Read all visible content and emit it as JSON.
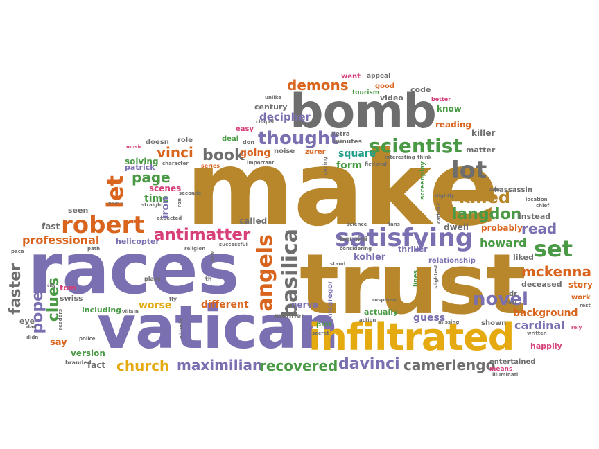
{
  "colors": {
    "purple": "#7a6fb0",
    "brown": "#b8862b",
    "gray": "#6e6e6e",
    "gold": "#e4aa10",
    "green": "#4a9a45",
    "teal": "#1f9e8a",
    "orange": "#d9641e",
    "pink": "#d63f79",
    "red": "#c23a2c"
  },
  "words": {
    "make": "make",
    "trust": "trust",
    "races": "races",
    "vatican": "vatican",
    "infiltrated": "infiltrated",
    "bomb": "bomb",
    "satisfying": "satisfying",
    "scientist": "scientist",
    "demons": "demons",
    "robert": "robert",
    "angels": "angels",
    "basilica": "basilica",
    "antimatter": "antimatter",
    "langdon": "langdon",
    "novel": "novel",
    "set": "set",
    "mckenna": "mckenna",
    "lot": "lot",
    "killed": "killed",
    "thought": "thought",
    "book": "book",
    "page": "page",
    "let": "let",
    "vinci": "vinci",
    "church": "church",
    "maximilian": "maximilian",
    "recovered": "recovered",
    "davinci": "davinci",
    "camerlengo": "camerlengo",
    "clues": "clues",
    "pope": "pope",
    "faster": "faster",
    "read": "read",
    "howard": "howard",
    "professional": "professional",
    "cardinal": "cardinal",
    "background": "background",
    "different": "different",
    "worse": "worse",
    "kohler": "kohler",
    "decipher": "decipher",
    "going": "going",
    "square": "square",
    "form": "form",
    "iron": "iron",
    "time": "time",
    "scenes": "scenes",
    "solving": "solving",
    "patrick": "patrick",
    "helicopter": "helicopter",
    "called": "called",
    "fast": "fast",
    "seen": "seen",
    "swiss": "swiss",
    "tom": "tom",
    "eye": "eye",
    "say": "say",
    "version": "version",
    "fact": "fact",
    "branded": "branded",
    "including": "including",
    "nerve": "nerve",
    "guess": "guess",
    "actually": "actually",
    "plot": "plot",
    "manner": "manner",
    "thriller": "thriller",
    "relationship": "relationship",
    "mcgregor": "mcgregor",
    "bernini": "bernini",
    "dwell": "dwell",
    "probably": "probably",
    "instead": "instead",
    "liked": "liked",
    "deceased": "deceased",
    "story": "story",
    "work": "work",
    "dr": "dr",
    "happily": "happily",
    "shown": "shown",
    "entertained": "entertained",
    "means": "means",
    "written": "written",
    "rely": "rely",
    "rest": "rest",
    "chief": "chief",
    "location": "location",
    "hassassin": "hassassin",
    "killer": "killer",
    "matter": "matter",
    "reading": "reading",
    "know": "know",
    "code": "code",
    "better": "better",
    "video": "video",
    "appeal": "appeal",
    "went": "went",
    "good": "good",
    "tourism": "tourism",
    "century": "century",
    "easy": "easy",
    "deal": "deal",
    "don": "don",
    "noise": "noise",
    "zurer": "zurer",
    "vetra": "vetra",
    "minutes": "minutes",
    "doesn": "doesn",
    "role": "role",
    "music": "music",
    "character": "character",
    "series": "series",
    "important": "important",
    "fictional": "fictional",
    "interesting": "interesting",
    "think": "think",
    "screenplay": "screenplay",
    "slightly": "slightly",
    "catholic": "catholic",
    "saw": "saw",
    "plays": "plays",
    "th": "th",
    "fly": "fly",
    "villain": "villain",
    "vittoria": "vittoria",
    "police": "police",
    "dan": "dan",
    "didn": "didn",
    "readers": "readers",
    "city": "city",
    "pace": "pace",
    "path": "path",
    "religion": "religion",
    "successful": "successful",
    "new": "new",
    "science": "science",
    "fans": "fans",
    "stand": "stand",
    "considering": "considering",
    "secret": "secret",
    "suspense": "suspense",
    "action": "action",
    "lines": "lines",
    "slightest": "slightest",
    "missing": "missing",
    "feel": "feel",
    "illuminati": "illuminati",
    "chapel": "chapel",
    "unlike": "unlike",
    "straight": "straight",
    "years": "years",
    "expected": "expected",
    "seconds": "seconds",
    "running": "running",
    "ron": "ron"
  }
}
